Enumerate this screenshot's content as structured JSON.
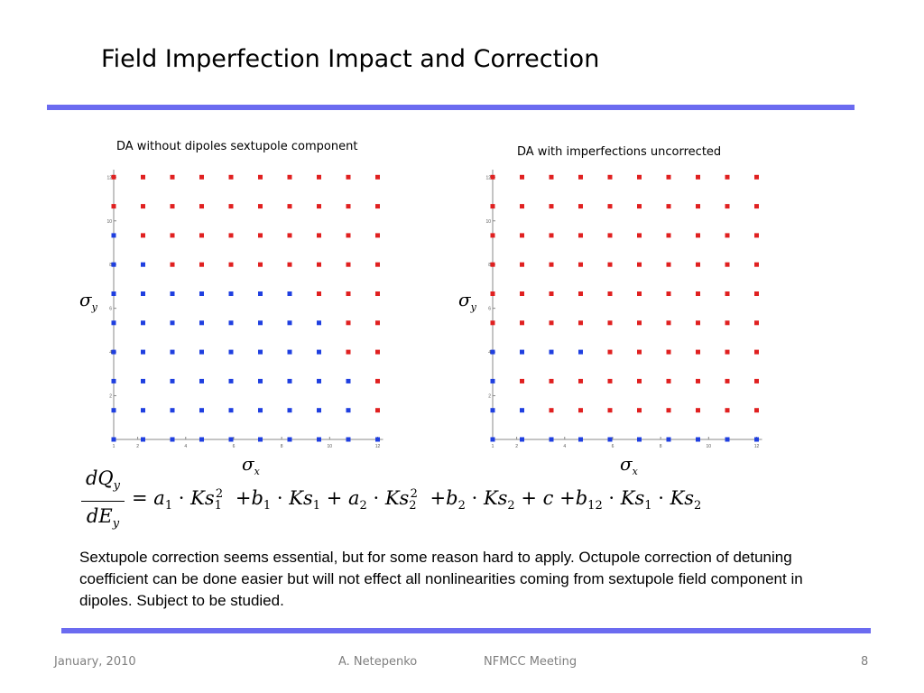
{
  "slide": {
    "title": "Field Imperfection Impact and Correction",
    "body": "Sextupole correction seems essential, but for some reason hard to apply. Octupole correction of detuning coefficient can be done easier but will not effect all nonlinearities coming from sextupole field component in dipoles. Subject to be studied.",
    "rule_color": "#6b6bf0"
  },
  "plots": [
    {
      "title": "DA without dipoles sextupole component",
      "ylabel_symbol": "σ",
      "ylabel_sub": "y",
      "xlabel_symbol": "σ",
      "xlabel_sub": "x",
      "x_ticks": [
        "1",
        "2",
        "4",
        "6",
        "8",
        "10",
        "12"
      ],
      "y_ticks": [
        "2",
        "4",
        "6",
        "8",
        "10",
        "12"
      ],
      "blue_counts": [
        10,
        9,
        9,
        8,
        8,
        7,
        2,
        1,
        0,
        0
      ]
    },
    {
      "title": "DA with imperfections uncorrected",
      "ylabel_symbol": "σ",
      "ylabel_sub": "y",
      "xlabel_symbol": "σ",
      "xlabel_sub": "x",
      "x_ticks": [
        "1",
        "2",
        "4",
        "6",
        "8",
        "10",
        "12"
      ],
      "y_ticks": [
        "2",
        "4",
        "6",
        "8",
        "10",
        "12"
      ],
      "blue_counts": [
        10,
        2,
        1,
        4,
        0,
        0,
        0,
        0,
        0,
        0
      ]
    }
  ],
  "colors": {
    "blue_point": "#1f3fe0",
    "red_point": "#e02020"
  },
  "footer": {
    "date": "January, 2010",
    "author": "A. Netepenko",
    "meeting": "NFMCC Meeting",
    "page": "8"
  }
}
